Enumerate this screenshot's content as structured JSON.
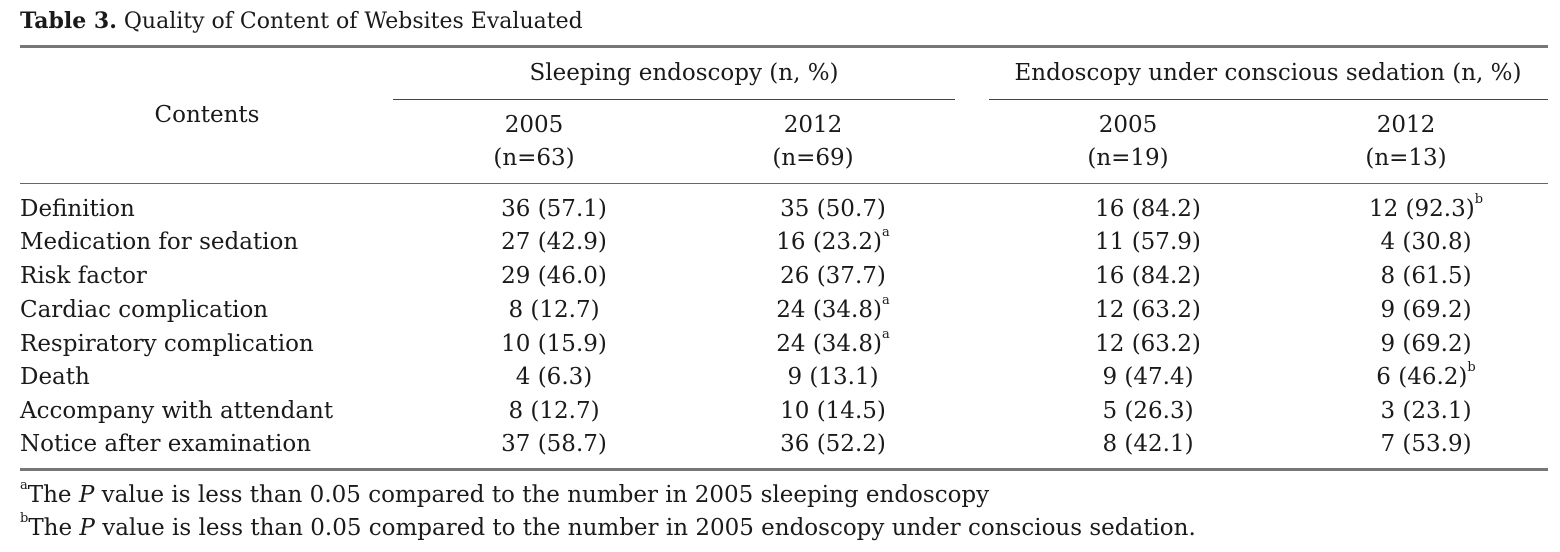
{
  "title": {
    "label": "Table 3.",
    "text": " Quality of Content of Websites Evaluated"
  },
  "header": {
    "row_label": "Contents",
    "groups": [
      {
        "label": "Sleeping endoscopy (n, %)",
        "years": [
          {
            "year": "2005",
            "n": "(n=63)"
          },
          {
            "year": "2012",
            "n": "(n=69)"
          }
        ]
      },
      {
        "label": "Endoscopy under conscious sedation (n, %)",
        "years": [
          {
            "year": "2005",
            "n": "(n=19)"
          },
          {
            "year": "2012",
            "n": "(n=13)"
          }
        ]
      }
    ]
  },
  "rows": [
    {
      "label": "Definition",
      "cells": [
        {
          "v": "36 (57.1)",
          "sup": ""
        },
        {
          "v": "35 (50.7)",
          "sup": ""
        },
        {
          "v": "16 (84.2)",
          "sup": ""
        },
        {
          "v": "12 (92.3)",
          "sup": "b"
        }
      ]
    },
    {
      "label": "Medication for sedation",
      "cells": [
        {
          "v": "27 (42.9)",
          "sup": ""
        },
        {
          "v": "16 (23.2)",
          "sup": "a"
        },
        {
          "v": "11 (57.9)",
          "sup": ""
        },
        {
          "v": "4 (30.8)",
          "sup": ""
        }
      ]
    },
    {
      "label": "Risk factor",
      "cells": [
        {
          "v": "29 (46.0)",
          "sup": ""
        },
        {
          "v": "26 (37.7)",
          "sup": ""
        },
        {
          "v": "16 (84.2)",
          "sup": ""
        },
        {
          "v": "8 (61.5)",
          "sup": ""
        }
      ]
    },
    {
      "label": "Cardiac complication",
      "cells": [
        {
          "v": "8 (12.7)",
          "sup": ""
        },
        {
          "v": "24 (34.8)",
          "sup": "a"
        },
        {
          "v": "12 (63.2)",
          "sup": ""
        },
        {
          "v": "9 (69.2)",
          "sup": ""
        }
      ]
    },
    {
      "label": "Respiratory complication",
      "cells": [
        {
          "v": "10 (15.9)",
          "sup": ""
        },
        {
          "v": "24 (34.8)",
          "sup": "a"
        },
        {
          "v": "12 (63.2)",
          "sup": ""
        },
        {
          "v": "9 (69.2)",
          "sup": ""
        }
      ]
    },
    {
      "label": "Death",
      "cells": [
        {
          "v": "4 (6.3)",
          "sup": ""
        },
        {
          "v": "9 (13.1)",
          "sup": ""
        },
        {
          "v": "9 (47.4)",
          "sup": ""
        },
        {
          "v": "6 (46.2)",
          "sup": "b"
        }
      ]
    },
    {
      "label": "Accompany with attendant",
      "cells": [
        {
          "v": "8 (12.7)",
          "sup": ""
        },
        {
          "v": "10 (14.5)",
          "sup": ""
        },
        {
          "v": "5 (26.3)",
          "sup": ""
        },
        {
          "v": "3 (23.1)",
          "sup": ""
        }
      ]
    },
    {
      "label": "Notice after examination",
      "cells": [
        {
          "v": "37 (58.7)",
          "sup": ""
        },
        {
          "v": "36 (52.2)",
          "sup": ""
        },
        {
          "v": "8 (42.1)",
          "sup": ""
        },
        {
          "v": "7 (53.9)",
          "sup": ""
        }
      ]
    }
  ],
  "footnotes": [
    {
      "mark": "a",
      "pre": "The ",
      "italic": "P",
      "post": " value is less than 0.05 compared to the number in 2005 sleeping endoscopy"
    },
    {
      "mark": "b",
      "pre": "The ",
      "italic": "P",
      "post": " value is less than 0.05 compared to the number in 2005 endoscopy under conscious sedation."
    }
  ]
}
